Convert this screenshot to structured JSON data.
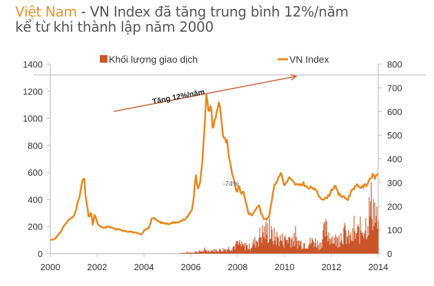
{
  "title": {
    "accent": "Việt Nam",
    "rest_line1": " - VN Index đã tăng trung bình 12%/năm",
    "line2": "kể từ khi thành lập năm 2000"
  },
  "legend": {
    "volume_label": "Khối lượng giao dịch",
    "index_label": "VN Index"
  },
  "annotations": {
    "trend_label": "Tăng 12%/năm",
    "drawdown_label": "-74%"
  },
  "colors": {
    "index_line": "#e8891e",
    "volume_bars": "#c9562a",
    "trend_arrow": "#c8643a",
    "axis": "#bfbfbf",
    "title_accent": "#e8922a",
    "title_text": "#555555"
  },
  "chart_data": {
    "type": "line+bar",
    "title": "Việt Nam - VN Index đã tăng trung bình 12%/năm kể từ khi thành lập năm 2000",
    "xlabel": "",
    "ylabel_left": "VN Index",
    "ylabel_right": "Khối lượng giao dịch",
    "x_ticks": [
      "2000",
      "2002",
      "2004",
      "2006",
      "2008",
      "2010",
      "2012",
      "2014"
    ],
    "y_left_ticks": [
      "0",
      "200",
      "400",
      "600",
      "800",
      "1000",
      "1200",
      "1400"
    ],
    "y_right_ticks": [
      "0",
      "100",
      "200",
      "300",
      "400",
      "500",
      "600",
      "700",
      "800"
    ],
    "ylim_left": [
      0,
      1400
    ],
    "ylim_right": [
      0,
      800
    ],
    "xlim": [
      2000,
      2014
    ],
    "grid": false,
    "legend_position": "top",
    "series": [
      {
        "name": "VN Index",
        "type": "line",
        "axis": "left",
        "x": [
          2000.0,
          2000.2,
          2000.4,
          2000.6,
          2000.8,
          2000.9,
          2001.0,
          2001.1,
          2001.25,
          2001.35,
          2001.45,
          2001.5,
          2001.55,
          2001.65,
          2001.75,
          2001.8,
          2001.9,
          2002.0,
          2002.1,
          2002.3,
          2002.5,
          2002.8,
          2003.0,
          2003.3,
          2003.5,
          2003.7,
          2003.9,
          2004.0,
          2004.2,
          2004.35,
          2004.5,
          2004.7,
          2005.0,
          2005.3,
          2005.6,
          2005.8,
          2005.95,
          2006.05,
          2006.15,
          2006.2,
          2006.3,
          2006.4,
          2006.5,
          2006.6,
          2006.65,
          2006.75,
          2006.85,
          2006.95,
          2007.05,
          2007.15,
          2007.25,
          2007.35,
          2007.45,
          2007.55,
          2007.65,
          2007.75,
          2007.85,
          2007.95,
          2008.05,
          2008.15,
          2008.25,
          2008.35,
          2008.45,
          2008.6,
          2008.75,
          2008.9,
          2009.0,
          2009.1,
          2009.2,
          2009.35,
          2009.5,
          2009.6,
          2009.75,
          2009.85,
          2010.0,
          2010.2,
          2010.4,
          2010.6,
          2010.8,
          2011.0,
          2011.2,
          2011.4,
          2011.5,
          2011.7,
          2011.9,
          2012.0,
          2012.15,
          2012.3,
          2012.5,
          2012.7,
          2012.9,
          2013.1,
          2013.3,
          2013.5,
          2013.6,
          2013.75,
          2013.85,
          2014.0
        ],
        "values": [
          100,
          110,
          150,
          210,
          250,
          260,
          280,
          330,
          420,
          520,
          570,
          420,
          380,
          260,
          320,
          200,
          290,
          230,
          200,
          190,
          200,
          180,
          175,
          165,
          160,
          150,
          140,
          170,
          190,
          270,
          250,
          230,
          220,
          230,
          240,
          260,
          300,
          320,
          450,
          600,
          480,
          520,
          700,
          950,
          1170,
          1050,
          1100,
          900,
          1000,
          1100,
          1080,
          900,
          850,
          820,
          700,
          600,
          550,
          450,
          500,
          440,
          460,
          380,
          300,
          280,
          330,
          360,
          300,
          260,
          250,
          280,
          450,
          520,
          560,
          600,
          500,
          560,
          520,
          500,
          520,
          480,
          490,
          450,
          420,
          400,
          430,
          470,
          500,
          440,
          420,
          400,
          480,
          500,
          490,
          510,
          540,
          580,
          560,
          600
        ]
      },
      {
        "name": "Khối lượng giao dịch",
        "type": "bar",
        "axis": "right",
        "x": [
          2005.5,
          2006.0,
          2006.5,
          2007.0,
          2007.5,
          2008.0,
          2008.5,
          2008.75,
          2009.0,
          2009.25,
          2009.5,
          2009.75,
          2010.0,
          2010.25,
          2010.5,
          2010.75,
          2011.0,
          2011.25,
          2011.5,
          2011.75,
          2012.0,
          2012.25,
          2012.5,
          2012.75,
          2013.0,
          2013.25,
          2013.5,
          2013.75,
          2014.0
        ],
        "values": [
          2,
          5,
          12,
          15,
          20,
          40,
          30,
          55,
          90,
          105,
          80,
          70,
          60,
          75,
          55,
          50,
          45,
          60,
          40,
          110,
          75,
          60,
          100,
          70,
          80,
          110,
          140,
          240,
          120
        ]
      }
    ],
    "trend_arrow": {
      "from": [
        2002.7,
        1050
      ],
      "to": [
        2010.5,
        1320
      ],
      "label": "Tăng 12%/năm"
    },
    "annotations": [
      {
        "x": 2007.6,
        "y": 520,
        "text": "-74%"
      }
    ],
    "reference_line": {
      "y_left": 1320
    }
  }
}
